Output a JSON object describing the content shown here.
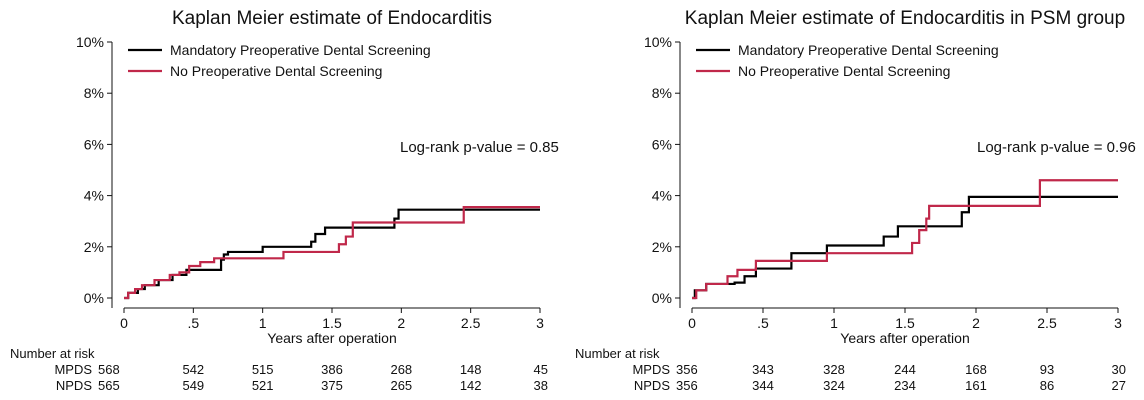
{
  "chart_data": [
    {
      "type": "line",
      "step": true,
      "title": "Kaplan Meier estimate of Endocarditis",
      "xlabel": "Years after operation",
      "ylabel": "",
      "xlim": [
        0,
        3
      ],
      "ylim": [
        0,
        10
      ],
      "x_ticks": [
        0,
        0.5,
        1,
        1.5,
        2,
        2.5,
        3
      ],
      "x_tick_labels": [
        "0",
        ".5",
        "1",
        "1.5",
        "2",
        "2.5",
        "3"
      ],
      "y_ticks": [
        0,
        2,
        4,
        6,
        8,
        10
      ],
      "y_tick_labels": [
        "0%",
        "2%",
        "4%",
        "6%",
        "8%",
        "10%"
      ],
      "legend": {
        "placement": "top-left"
      },
      "annotation": "Log-rank p-value = 0.85",
      "series": [
        {
          "name": "Mandatory Preoperative Dental Screening",
          "color": "#000000",
          "points": [
            [
              0,
              0
            ],
            [
              0.03,
              0.2
            ],
            [
              0.1,
              0.35
            ],
            [
              0.15,
              0.5
            ],
            [
              0.25,
              0.7
            ],
            [
              0.35,
              0.9
            ],
            [
              0.45,
              1.1
            ],
            [
              0.7,
              1.5
            ],
            [
              0.72,
              1.7
            ],
            [
              0.75,
              1.8
            ],
            [
              1.0,
              2.0
            ],
            [
              1.35,
              2.2
            ],
            [
              1.38,
              2.5
            ],
            [
              1.45,
              2.75
            ],
            [
              1.95,
              3.1
            ],
            [
              1.98,
              3.45
            ],
            [
              3.0,
              3.45
            ]
          ]
        },
        {
          "name": "No Preoperative Dental Screening",
          "color": "#c0284a",
          "points": [
            [
              0,
              0
            ],
            [
              0.03,
              0.2
            ],
            [
              0.08,
              0.35
            ],
            [
              0.13,
              0.5
            ],
            [
              0.22,
              0.7
            ],
            [
              0.33,
              0.9
            ],
            [
              0.4,
              1.0
            ],
            [
              0.47,
              1.25
            ],
            [
              0.55,
              1.4
            ],
            [
              0.65,
              1.55
            ],
            [
              0.8,
              1.55
            ],
            [
              1.0,
              1.55
            ],
            [
              1.15,
              1.8
            ],
            [
              1.55,
              2.1
            ],
            [
              1.6,
              2.4
            ],
            [
              1.65,
              2.95
            ],
            [
              2.45,
              3.55
            ],
            [
              3.0,
              3.55
            ]
          ]
        }
      ],
      "risk_table": {
        "header": "Number at risk",
        "rows": [
          {
            "label": "MPDS",
            "values": [
              "568",
              "542",
              "515",
              "386",
              "268",
              "148",
              "45"
            ]
          },
          {
            "label": "NPDS",
            "values": [
              "565",
              "549",
              "521",
              "375",
              "265",
              "142",
              "38"
            ]
          }
        ]
      }
    },
    {
      "type": "line",
      "step": true,
      "title": "Kaplan Meier estimate of Endocarditis in PSM group",
      "xlabel": "Years after operation",
      "ylabel": "",
      "xlim": [
        0,
        3
      ],
      "ylim": [
        0,
        10
      ],
      "x_ticks": [
        0,
        0.5,
        1,
        1.5,
        2,
        2.5,
        3
      ],
      "x_tick_labels": [
        "0",
        ".5",
        "1",
        "1.5",
        "2",
        "2.5",
        "3"
      ],
      "y_ticks": [
        0,
        2,
        4,
        6,
        8,
        10
      ],
      "y_tick_labels": [
        "0%",
        "2%",
        "4%",
        "6%",
        "8%",
        "10%"
      ],
      "legend": {
        "placement": "top-left"
      },
      "annotation": "Log-rank p-value = 0.96",
      "series": [
        {
          "name": "Mandatory Preoperative Dental Screening",
          "color": "#000000",
          "points": [
            [
              0,
              0
            ],
            [
              0.02,
              0.3
            ],
            [
              0.1,
              0.55
            ],
            [
              0.3,
              0.6
            ],
            [
              0.37,
              0.85
            ],
            [
              0.45,
              1.15
            ],
            [
              0.7,
              1.75
            ],
            [
              0.95,
              2.05
            ],
            [
              1.35,
              2.4
            ],
            [
              1.45,
              2.8
            ],
            [
              1.85,
              2.8
            ],
            [
              1.9,
              3.35
            ],
            [
              1.95,
              3.95
            ],
            [
              3.0,
              3.95
            ]
          ]
        },
        {
          "name": "No Preoperative Dental Screening",
          "color": "#c0284a",
          "points": [
            [
              0,
              0
            ],
            [
              0.03,
              0.3
            ],
            [
              0.1,
              0.55
            ],
            [
              0.25,
              0.85
            ],
            [
              0.32,
              1.1
            ],
            [
              0.45,
              1.45
            ],
            [
              0.7,
              1.45
            ],
            [
              0.95,
              1.75
            ],
            [
              1.55,
              2.15
            ],
            [
              1.6,
              2.65
            ],
            [
              1.65,
              3.1
            ],
            [
              1.67,
              3.6
            ],
            [
              1.95,
              3.6
            ],
            [
              2.45,
              4.6
            ],
            [
              3.0,
              4.6
            ]
          ]
        }
      ],
      "risk_table": {
        "header": "Number at risk",
        "rows": [
          {
            "label": "MPDS",
            "values": [
              "356",
              "343",
              "328",
              "244",
              "168",
              "93",
              "30"
            ]
          },
          {
            "label": "NPDS",
            "values": [
              "356",
              "344",
              "324",
              "234",
              "161",
              "86",
              "27"
            ]
          }
        ]
      }
    }
  ]
}
